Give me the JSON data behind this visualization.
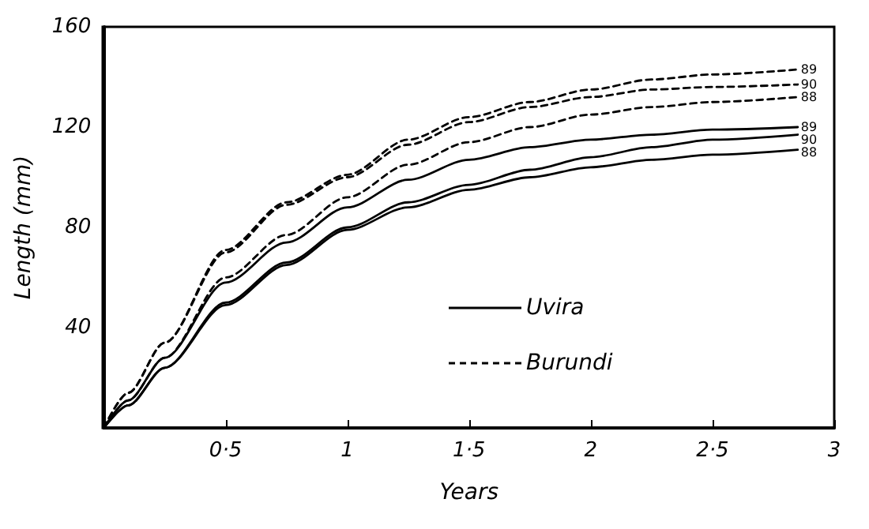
{
  "chart_data": {
    "type": "line",
    "xlabel": "Years",
    "ylabel": "Length (mm)",
    "xlim": [
      0,
      3
    ],
    "ylim": [
      0,
      160
    ],
    "xticks": [
      {
        "value": 0.5,
        "label": "0·5"
      },
      {
        "value": 1,
        "label": "1"
      },
      {
        "value": 1.5,
        "label": "1·5"
      },
      {
        "value": 2,
        "label": "2"
      },
      {
        "value": 2.5,
        "label": "2·5"
      },
      {
        "value": 3,
        "label": "3"
      }
    ],
    "yticks": [
      40,
      80,
      120,
      160
    ],
    "x": [
      0,
      0.1,
      0.25,
      0.5,
      0.75,
      1,
      1.25,
      1.5,
      1.75,
      2,
      2.25,
      2.5,
      2.85
    ],
    "series": [
      {
        "name": "89",
        "color": "#000000",
        "line_style": "solid",
        "values": [
          0,
          11,
          28,
          58,
          74,
          88,
          99,
          107,
          112,
          115,
          117,
          119,
          120
        ]
      },
      {
        "name": "90",
        "color": "#000000",
        "line_style": "solid",
        "values": [
          0,
          9,
          24,
          50,
          66,
          80,
          90,
          97,
          103,
          108,
          112,
          115,
          117
        ]
      },
      {
        "name": "88",
        "color": "#000000",
        "line_style": "solid",
        "values": [
          0,
          9,
          24,
          49,
          65,
          79,
          88,
          95,
          100,
          104,
          107,
          109,
          111
        ]
      },
      {
        "name": "89",
        "color": "#000000",
        "line_style": "dashed",
        "values": [
          0,
          14,
          34,
          71,
          90,
          101,
          115,
          124,
          130,
          135,
          139,
          141,
          143
        ]
      },
      {
        "name": "90",
        "color": "#000000",
        "line_style": "dashed",
        "values": [
          0,
          14,
          34,
          70,
          89,
          100,
          113,
          122,
          128,
          132,
          135,
          136,
          137
        ]
      },
      {
        "name": "88",
        "color": "#000000",
        "line_style": "dashed",
        "values": [
          0,
          11,
          28,
          60,
          77,
          92,
          105,
          114,
          120,
          125,
          128,
          130,
          132
        ]
      }
    ],
    "annotations": [
      "Uvira",
      "Burundi"
    ],
    "marker": "none",
    "grid": false,
    "legend": false
  }
}
